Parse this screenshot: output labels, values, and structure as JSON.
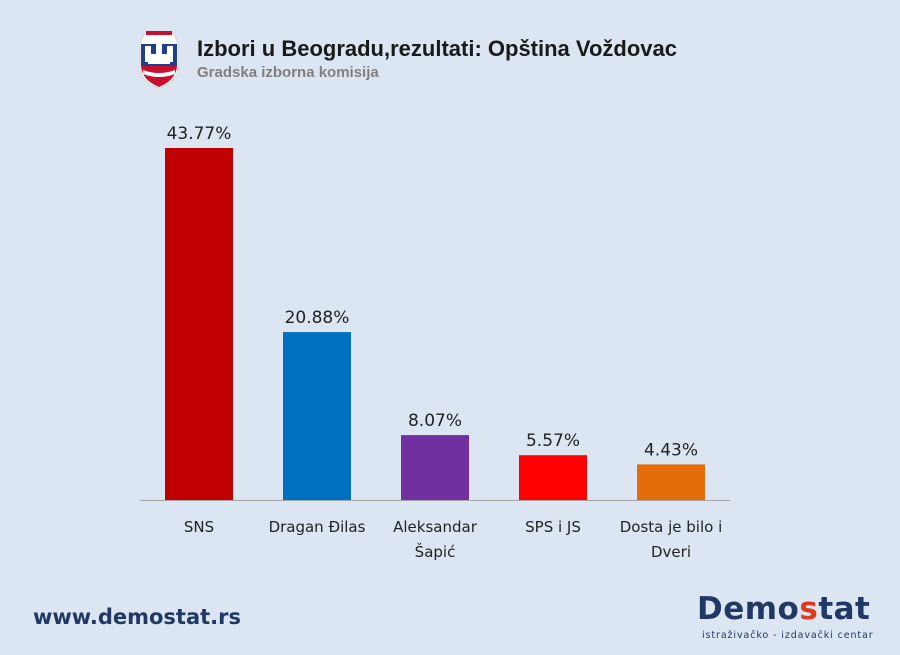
{
  "header": {
    "title": "Izbori u Beogradu,rezultati: Opština Voždovac",
    "subtitle": "Gradska izborna komisija",
    "emblem_icon": "belgrade-coat-of-arms-icon"
  },
  "chart_data": {
    "type": "bar",
    "title": "Izbori u Beogradu,rezultati: Opština Voždovac",
    "subtitle": "Gradska izborna komisija",
    "xlabel": "",
    "ylabel": "",
    "ylim": [
      0,
      48
    ],
    "grid": false,
    "legend": "none",
    "categories": [
      [
        "SNS"
      ],
      [
        "Dragan Đilas"
      ],
      [
        "Aleksandar",
        "Šapić"
      ],
      [
        "SPS i JS"
      ],
      [
        "Dosta je bilo i",
        "Dveri"
      ]
    ],
    "values": [
      43.77,
      20.88,
      8.07,
      5.57,
      4.43
    ],
    "value_labels": [
      "43.77%",
      "20.88%",
      "8.07%",
      "5.57%",
      "4.43%"
    ],
    "colors": [
      "#c00000",
      "#0070c0",
      "#7030a0",
      "#ff0000",
      "#e46c0a"
    ]
  },
  "footer": {
    "url": "www.demostat.rs",
    "logo_part1": "Demo",
    "logo_accent": "s",
    "logo_part2": "tat",
    "logo_tagline": "istraživačko - izdavački centar"
  }
}
